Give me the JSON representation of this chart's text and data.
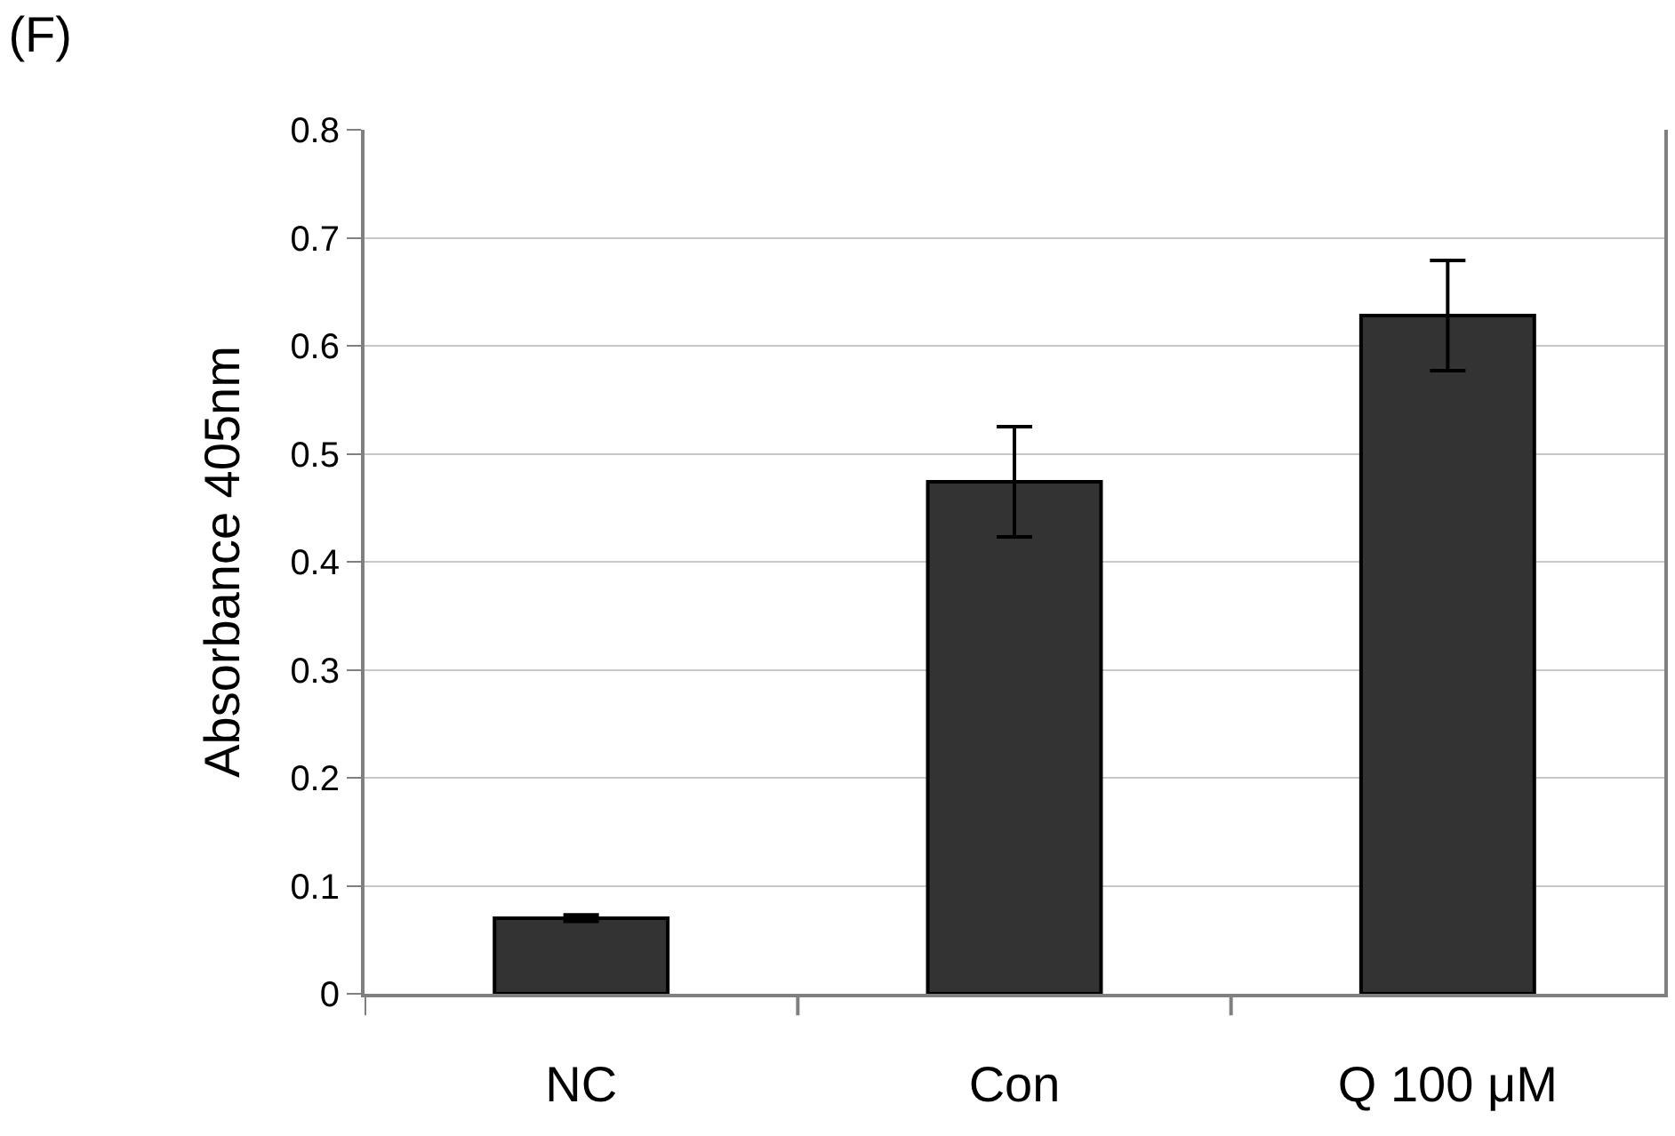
{
  "chart_data": {
    "type": "bar",
    "title": "(F)",
    "ylabel": "Absorbance 405nm",
    "categories": [
      "NC",
      "Con",
      "Q 100 μM"
    ],
    "values": [
      0.07,
      0.474,
      0.628
    ],
    "errors": [
      0.003,
      0.051,
      0.051
    ],
    "color": "#333333",
    "ylim": [
      0,
      0.8
    ],
    "yticks": [
      0,
      0.1,
      0.2,
      0.3,
      0.4,
      0.5,
      0.6,
      0.7,
      0.8
    ],
    "grid": "y",
    "legend": false
  }
}
